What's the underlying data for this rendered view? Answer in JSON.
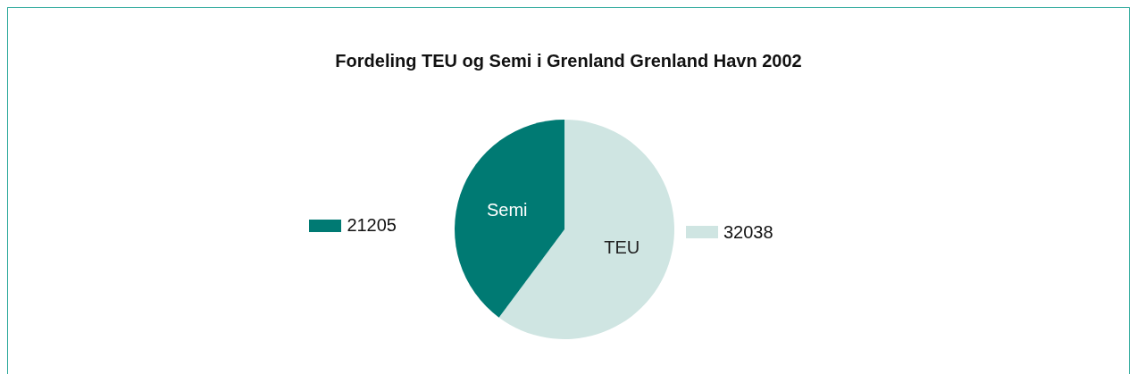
{
  "chart_data": {
    "type": "pie",
    "title": "Fordeling TEU og Semi i Grenland Grenland Havn 2002",
    "categories": [
      "TEU",
      "Semi"
    ],
    "values": [
      32038,
      21205
    ],
    "colors": [
      "#cfe5e2",
      "#007a73"
    ],
    "data_labels": true
  }
}
